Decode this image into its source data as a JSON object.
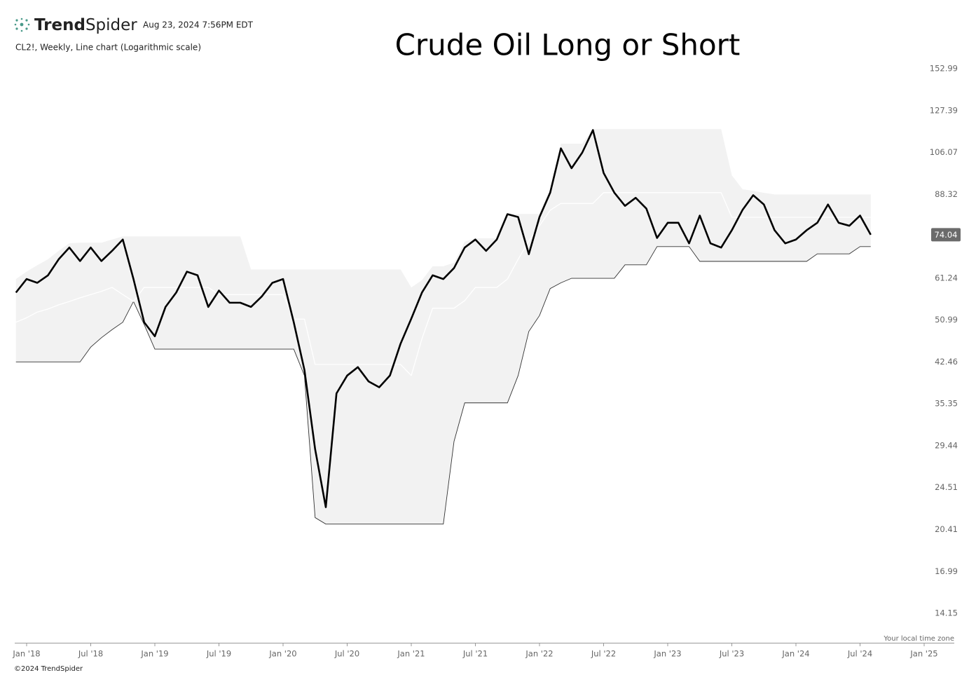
{
  "chart_data": {
    "type": "line",
    "brand": [
      "Trend",
      "Spider"
    ],
    "timestamp": "Aug 23, 2024 7:56PM EDT",
    "subtitle": "CL2!, Weekly, Line chart (Logarithmic scale)",
    "title": "Crude Oil Long or Short",
    "note": "Your local time zone",
    "footer": "©2024 TrendSpider",
    "ylog": true,
    "ylim": [
      12.44,
      161.66
    ],
    "yticks": [
      152.99,
      127.39,
      106.07,
      88.32,
      61.24,
      50.99,
      42.46,
      35.35,
      29.44,
      24.51,
      20.41,
      16.99,
      14.15
    ],
    "categories": [
      null,
      "Jan '18",
      null,
      null,
      null,
      null,
      null,
      "Jul '18",
      null,
      null,
      null,
      null,
      null,
      "Jan '19",
      null,
      null,
      null,
      null,
      null,
      "Jul '19",
      null,
      null,
      null,
      null,
      null,
      "Jan '20",
      null,
      null,
      null,
      null,
      null,
      "Jul '20",
      null,
      null,
      null,
      null,
      null,
      "Jan '21",
      null,
      null,
      null,
      null,
      null,
      "Jul '21",
      null,
      null,
      null,
      null,
      null,
      "Jan '22",
      null,
      null,
      null,
      null,
      null,
      "Jul '22",
      null,
      null,
      null,
      null,
      null,
      "Jan '23",
      null,
      null,
      null,
      null,
      null,
      "Jul '23",
      null,
      null,
      null,
      null,
      null,
      "Jan '24",
      null,
      null,
      null,
      null,
      null,
      "Jul '24",
      null,
      null,
      null,
      null,
      null,
      "Jan '25",
      null,
      null
    ],
    "band": {
      "color": "#f2f2f2",
      "edge_color": "#333333",
      "upper": [
        61,
        63,
        64.8,
        66.5,
        69,
        71.3,
        71.5,
        71.5,
        71.5,
        72.5,
        73.5,
        73.5,
        73.5,
        73.5,
        73.5,
        73.5,
        73.5,
        73.5,
        73.5,
        73.5,
        73.5,
        73.5,
        63.6,
        63.6,
        63.6,
        63.6,
        63.6,
        63.6,
        63.6,
        63.6,
        63.6,
        63.6,
        63.6,
        63.6,
        63.6,
        63.6,
        63.6,
        58.8,
        60.7,
        64.5,
        64.5,
        65.5,
        71.8,
        72.9,
        72.9,
        72.9,
        81.1,
        81.1,
        81.1,
        81.1,
        90.3,
        110.2,
        110.2,
        110.2,
        117.5,
        117.5,
        117.5,
        117.5,
        117.5,
        117.5,
        117.5,
        117.5,
        117.5,
        117.5,
        117.5,
        117.5,
        117.5,
        96,
        90.3,
        89.7,
        88.9,
        88.3,
        88.3,
        88.3,
        88.3,
        88.3,
        88.3,
        88.3,
        88.3,
        88.3,
        88.3,
        null,
        null,
        null,
        null,
        null,
        null,
        null
      ],
      "lower": [
        42.46,
        42.46,
        42.46,
        42.46,
        42.46,
        42.46,
        42.46,
        45.3,
        47.2,
        48.9,
        50.5,
        55.3,
        50,
        44.9,
        44.9,
        44.9,
        44.9,
        44.9,
        44.9,
        44.9,
        44.9,
        44.9,
        44.9,
        44.9,
        44.9,
        44.9,
        44.9,
        40,
        21.5,
        20.9,
        20.9,
        20.9,
        20.9,
        20.9,
        20.9,
        20.9,
        20.9,
        20.9,
        20.9,
        20.9,
        20.9,
        30,
        35.5,
        35.5,
        35.5,
        35.5,
        35.5,
        40,
        48.5,
        52,
        58.5,
        60,
        61.2,
        61.2,
        61.2,
        61.2,
        61.2,
        64.9,
        64.9,
        64.9,
        70.3,
        70.3,
        70.3,
        70.3,
        65.9,
        65.9,
        65.9,
        65.9,
        65.9,
        65.9,
        65.9,
        65.9,
        65.9,
        65.9,
        65.9,
        68.1,
        68.1,
        68.1,
        68.1,
        70.3,
        70.3,
        null,
        null,
        null,
        null,
        null,
        null,
        null
      ]
    },
    "series": [
      {
        "color": "#000000",
        "values": [
          57.5,
          61,
          60,
          62,
          66.5,
          70,
          66,
          70,
          66,
          69,
          72.5,
          61,
          50.5,
          47.5,
          54,
          57.5,
          63,
          62,
          54,
          58,
          55,
          55,
          54,
          56.5,
          60,
          61,
          50.5,
          41,
          29,
          22.5,
          37,
          40,
          41.5,
          39,
          38,
          40,
          46,
          51.3,
          57.5,
          62,
          61,
          64,
          70,
          72.5,
          69,
          72.5,
          81,
          80,
          68,
          80,
          89,
          108,
          99,
          106,
          117,
          97,
          89,
          84,
          87,
          83,
          73,
          78,
          78,
          71.3,
          80.5,
          71.3,
          70,
          75.5,
          82.5,
          88,
          84.5,
          75.5,
          71.3,
          72.5,
          75.5,
          78,
          84.5,
          78,
          77,
          80.5,
          74.04,
          null,
          null,
          null,
          null,
          null,
          null,
          null
        ]
      },
      {
        "color": "#ffffff",
        "values": [
          50.5,
          51.5,
          52.8,
          53.5,
          54.5,
          55.3,
          56.2,
          57,
          57.8,
          58.8,
          57,
          55.3,
          58.8,
          58.8,
          58.8,
          58.8,
          58.8,
          58.8,
          58.8,
          57,
          57,
          57,
          57,
          57,
          57,
          57,
          51.2,
          51.2,
          42,
          42,
          42,
          42,
          42,
          42,
          42,
          42,
          42,
          40,
          47,
          53.7,
          53.7,
          53.7,
          55.5,
          58.8,
          58.8,
          58.8,
          61,
          66.5,
          72,
          77,
          82.4,
          84.9,
          84.9,
          84.9,
          84.9,
          89,
          89,
          89,
          89,
          89,
          89,
          89,
          89,
          89,
          89,
          89,
          89,
          79.9,
          79.9,
          79.9,
          79.9,
          79.9,
          79.9,
          79.9,
          79.9,
          79.9,
          79.9,
          79.9,
          79.9,
          79.9,
          79.9,
          null,
          null,
          null,
          null,
          null,
          null,
          null
        ]
      }
    ]
  }
}
